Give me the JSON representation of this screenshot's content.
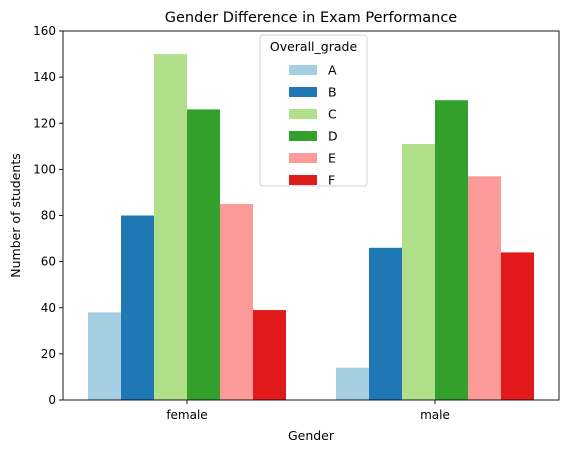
{
  "chart_data": {
    "type": "bar",
    "title": "Gender Difference in Exam Performance",
    "xlabel": "Gender",
    "ylabel": "Number of students",
    "categories": [
      "female",
      "male"
    ],
    "ylim": [
      0,
      160
    ],
    "yticks": [
      0,
      20,
      40,
      60,
      80,
      100,
      120,
      140,
      160
    ],
    "grid": false,
    "legend": {
      "title": "Overall_grade",
      "placement": "top-center"
    },
    "series": [
      {
        "name": "A",
        "color": "#a6cee3",
        "values": [
          38,
          14
        ]
      },
      {
        "name": "B",
        "color": "#1f78b4",
        "values": [
          80,
          66
        ]
      },
      {
        "name": "C",
        "color": "#b2df8a",
        "values": [
          150,
          111
        ]
      },
      {
        "name": "D",
        "color": "#33a02c",
        "values": [
          126,
          130
        ]
      },
      {
        "name": "E",
        "color": "#fb9a99",
        "values": [
          85,
          97
        ]
      },
      {
        "name": "F",
        "color": "#e31a1c",
        "values": [
          39,
          64
        ]
      }
    ]
  }
}
